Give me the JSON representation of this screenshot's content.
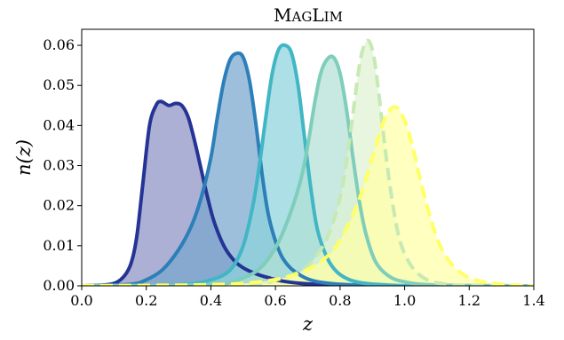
{
  "chart_data": {
    "type": "area",
    "title_cap1": "M",
    "title_small1": "AG",
    "title_cap2": "L",
    "title_small2": "IM",
    "xlabel": "z",
    "ylabel": "n(z)",
    "xlim": [
      0.0,
      1.4
    ],
    "ylim": [
      0.0,
      0.064
    ],
    "xticks": [
      "0.0",
      "0.2",
      "0.4",
      "0.6",
      "0.8",
      "1.0",
      "1.2",
      "1.4"
    ],
    "yticks": [
      "0.00",
      "0.01",
      "0.02",
      "0.03",
      "0.04",
      "0.05",
      "0.06"
    ],
    "grid": false,
    "series": [
      {
        "color": "#253494",
        "fill": "#8c91c3",
        "style": "solid",
        "x": [
          0.0,
          0.08,
          0.12,
          0.15,
          0.17,
          0.19,
          0.21,
          0.23,
          0.245,
          0.27,
          0.29,
          0.31,
          0.33,
          0.35,
          0.37,
          0.39,
          0.41,
          0.44,
          0.47,
          0.5,
          0.54,
          0.58,
          0.62,
          0.68,
          0.75,
          0.85,
          1.0,
          1.4
        ],
        "y": [
          0.0,
          0.0003,
          0.0015,
          0.005,
          0.012,
          0.026,
          0.04,
          0.045,
          0.046,
          0.045,
          0.0455,
          0.045,
          0.042,
          0.036,
          0.029,
          0.022,
          0.016,
          0.01,
          0.0065,
          0.0045,
          0.003,
          0.002,
          0.0012,
          0.0006,
          0.0003,
          0.0001,
          0.0,
          0.0
        ]
      },
      {
        "color": "#2c7fb8",
        "fill": "#79a6cf",
        "style": "solid",
        "x": [
          0.0,
          0.15,
          0.2,
          0.25,
          0.3,
          0.34,
          0.37,
          0.4,
          0.42,
          0.44,
          0.46,
          0.48,
          0.5,
          0.52,
          0.54,
          0.56,
          0.58,
          0.61,
          0.64,
          0.68,
          0.72,
          0.78,
          0.85,
          1.0,
          1.4
        ],
        "y": [
          0.0,
          0.0004,
          0.0015,
          0.004,
          0.009,
          0.015,
          0.022,
          0.032,
          0.042,
          0.051,
          0.0565,
          0.058,
          0.057,
          0.051,
          0.04,
          0.027,
          0.017,
          0.009,
          0.005,
          0.0025,
          0.0012,
          0.0005,
          0.0002,
          0.0,
          0.0
        ]
      },
      {
        "color": "#41b6c4",
        "fill": "#8dd3dd",
        "style": "solid",
        "x": [
          0.0,
          0.3,
          0.4,
          0.46,
          0.5,
          0.53,
          0.55,
          0.57,
          0.59,
          0.61,
          0.63,
          0.65,
          0.67,
          0.69,
          0.71,
          0.73,
          0.76,
          0.79,
          0.83,
          0.88,
          0.95,
          1.05,
          1.4
        ],
        "y": [
          0.0,
          0.0003,
          0.0015,
          0.004,
          0.01,
          0.02,
          0.03,
          0.042,
          0.053,
          0.059,
          0.06,
          0.058,
          0.05,
          0.037,
          0.024,
          0.014,
          0.007,
          0.0035,
          0.0015,
          0.0006,
          0.0002,
          0.0,
          0.0
        ]
      },
      {
        "color": "#7fcdbb",
        "fill": "#b2e1d5",
        "style": "solid",
        "x": [
          0.0,
          0.4,
          0.5,
          0.56,
          0.61,
          0.65,
          0.68,
          0.7,
          0.72,
          0.74,
          0.76,
          0.78,
          0.8,
          0.82,
          0.84,
          0.86,
          0.88,
          0.91,
          0.95,
          1.0,
          1.1,
          1.4
        ],
        "y": [
          0.0,
          0.0003,
          0.002,
          0.005,
          0.011,
          0.019,
          0.027,
          0.035,
          0.045,
          0.053,
          0.0565,
          0.057,
          0.053,
          0.044,
          0.032,
          0.021,
          0.013,
          0.006,
          0.0025,
          0.001,
          0.0002,
          0.0
        ]
      },
      {
        "color": "#c7e9b4",
        "fill": "#dff2d3",
        "style": "dashed",
        "x": [
          0.0,
          0.5,
          0.6,
          0.66,
          0.7,
          0.74,
          0.77,
          0.8,
          0.82,
          0.84,
          0.86,
          0.875,
          0.89,
          0.905,
          0.92,
          0.94,
          0.96,
          0.98,
          1.0,
          1.03,
          1.07,
          1.12,
          1.2,
          1.4
        ],
        "y": [
          0.0,
          0.0003,
          0.0015,
          0.003,
          0.005,
          0.009,
          0.014,
          0.022,
          0.031,
          0.043,
          0.055,
          0.06,
          0.061,
          0.057,
          0.048,
          0.034,
          0.022,
          0.013,
          0.008,
          0.004,
          0.0015,
          0.0005,
          0.0001,
          0.0
        ]
      },
      {
        "color": "#ffff66",
        "fill": "#ffffa6",
        "style": "dashed",
        "x": [
          0.0,
          0.4,
          0.55,
          0.65,
          0.72,
          0.78,
          0.83,
          0.87,
          0.9,
          0.93,
          0.955,
          0.975,
          0.99,
          1.01,
          1.03,
          1.05,
          1.08,
          1.11,
          1.15,
          1.2,
          1.26,
          1.33,
          1.4
        ],
        "y": [
          0.0,
          0.0003,
          0.001,
          0.0025,
          0.005,
          0.009,
          0.016,
          0.024,
          0.032,
          0.04,
          0.044,
          0.0445,
          0.043,
          0.039,
          0.033,
          0.026,
          0.017,
          0.01,
          0.005,
          0.002,
          0.0008,
          0.0002,
          0.0
        ]
      }
    ]
  }
}
